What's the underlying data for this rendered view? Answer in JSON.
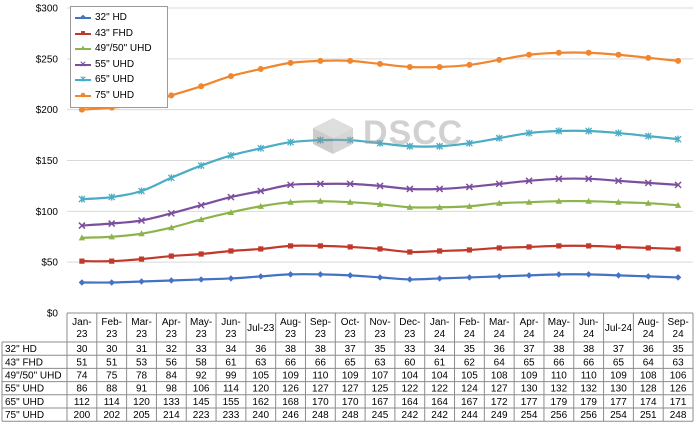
{
  "chart_data": {
    "type": "line",
    "title": "",
    "xlabel": "",
    "ylabel": "",
    "ylim": [
      0,
      300
    ],
    "yticks": [
      "$0",
      "$50",
      "$100",
      "$150",
      "$200",
      "$250",
      "$300"
    ],
    "categories": [
      "Jan-23",
      "Feb-23",
      "Mar-23",
      "Apr-23",
      "May-23",
      "Jun-23",
      "Jul-23",
      "Aug-23",
      "Sep-23",
      "Oct-23",
      "Nov-23",
      "Dec-23",
      "Jan-24",
      "Feb-24",
      "Mar-24",
      "Apr-24",
      "May-24",
      "Jun-24",
      "Jul-24",
      "Aug-24",
      "Sep-24"
    ],
    "legend_position": "top-left",
    "grid": true,
    "series": [
      {
        "name": "32\" HD",
        "color": "#4472c4",
        "marker": "diamond",
        "values": [
          30,
          30,
          31,
          32,
          33,
          34,
          36,
          38,
          38,
          37,
          35,
          33,
          34,
          35,
          36,
          37,
          38,
          38,
          37,
          36,
          35
        ]
      },
      {
        "name": "43\" FHD",
        "color": "#c0392b",
        "marker": "square",
        "values": [
          51,
          51,
          53,
          56,
          58,
          61,
          63,
          66,
          66,
          65,
          63,
          60,
          61,
          62,
          64,
          65,
          66,
          66,
          65,
          64,
          63
        ]
      },
      {
        "name": "49\"/50\" UHD",
        "color": "#8cb44b",
        "marker": "triangle",
        "values": [
          74,
          75,
          78,
          84,
          92,
          99,
          105,
          109,
          110,
          109,
          107,
          104,
          104,
          105,
          108,
          109,
          110,
          110,
          109,
          108,
          106
        ]
      },
      {
        "name": "55\" UHD",
        "color": "#7b4f9e",
        "marker": "x",
        "values": [
          86,
          88,
          91,
          98,
          106,
          114,
          120,
          126,
          127,
          127,
          125,
          122,
          122,
          124,
          127,
          130,
          132,
          132,
          130,
          128,
          126
        ]
      },
      {
        "name": "65\" UHD",
        "color": "#4aacc5",
        "marker": "asterisk",
        "values": [
          112,
          114,
          120,
          133,
          145,
          155,
          162,
          168,
          170,
          170,
          167,
          164,
          164,
          167,
          172,
          177,
          179,
          179,
          177,
          174,
          171
        ]
      },
      {
        "name": "75\" UHD",
        "color": "#f0862f",
        "marker": "circle",
        "values": [
          200,
          202,
          205,
          214,
          223,
          233,
          240,
          246,
          248,
          248,
          245,
          242,
          242,
          244,
          249,
          254,
          256,
          256,
          254,
          251,
          248
        ]
      }
    ]
  },
  "watermark": {
    "text": "DSCC"
  }
}
